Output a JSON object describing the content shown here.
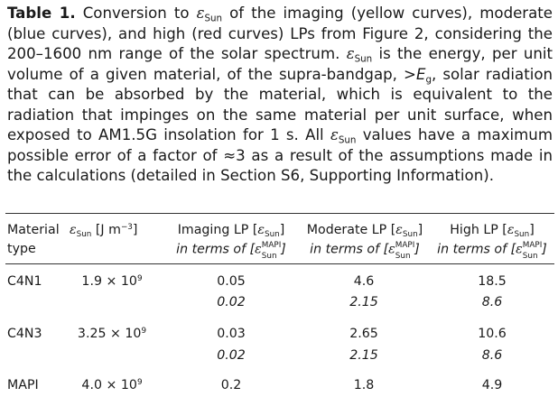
{
  "caption": {
    "label": "Table 1.",
    "text_1": " Conversion to ",
    "esun_symbol": "ε",
    "esun_sub": "Sun",
    "text_2": " of the imaging (yellow curves), moderate (blue curves), and high (red curves) LPs from Figure 2, considering the 200–1600 nm range of the solar spectrum. ",
    "text_3": " is the energy, per unit volume of a given material, of the supra-bandgap, >",
    "eg_symbol": "E",
    "eg_sub": "g",
    "text_4": ", solar radiation that can be absorbed by the material, which is equivalent to the radiation that impinges on the same material per unit surface, when exposed to AM1.5G insolation for 1 s. All ",
    "text_5": " values have a maximum possible error of a factor of ≈3 as a result of the assumptions made in the calculations (detailed in Section S6, Supporting Information)."
  },
  "table": {
    "headers": {
      "material_line1": "Material",
      "material_line2": "type",
      "esun_unit_pre": " [J m",
      "esun_unit_sup": "−3",
      "esun_unit_post": "]",
      "imaging_label": "Imaging LP [",
      "moderate_label": "Moderate LP [",
      "high_label": "High LP [",
      "bracket_close": "]",
      "in_terms_of": "in terms of [",
      "mapi_sup": "MAPI",
      "sun_sub": "Sun"
    },
    "rows": [
      {
        "material": "C4N1",
        "esun_mantissa": "1.9 × 10",
        "esun_exp": "9",
        "imaging": "0.05",
        "imaging_mapi": "0.02",
        "moderate": "4.6",
        "moderate_mapi": "2.15",
        "high": "18.5",
        "high_mapi": "8.6"
      },
      {
        "material": "C4N3",
        "esun_mantissa": "3.25 × 10",
        "esun_exp": "9",
        "imaging": "0.03",
        "imaging_mapi": "0.02",
        "moderate": "2.65",
        "moderate_mapi": "2.15",
        "high": "10.6",
        "high_mapi": "8.6"
      },
      {
        "material": "MAPI",
        "esun_mantissa": "4.0 × 10",
        "esun_exp": "9",
        "imaging": "0.2",
        "moderate": "1.8",
        "high": "4.9"
      }
    ]
  }
}
